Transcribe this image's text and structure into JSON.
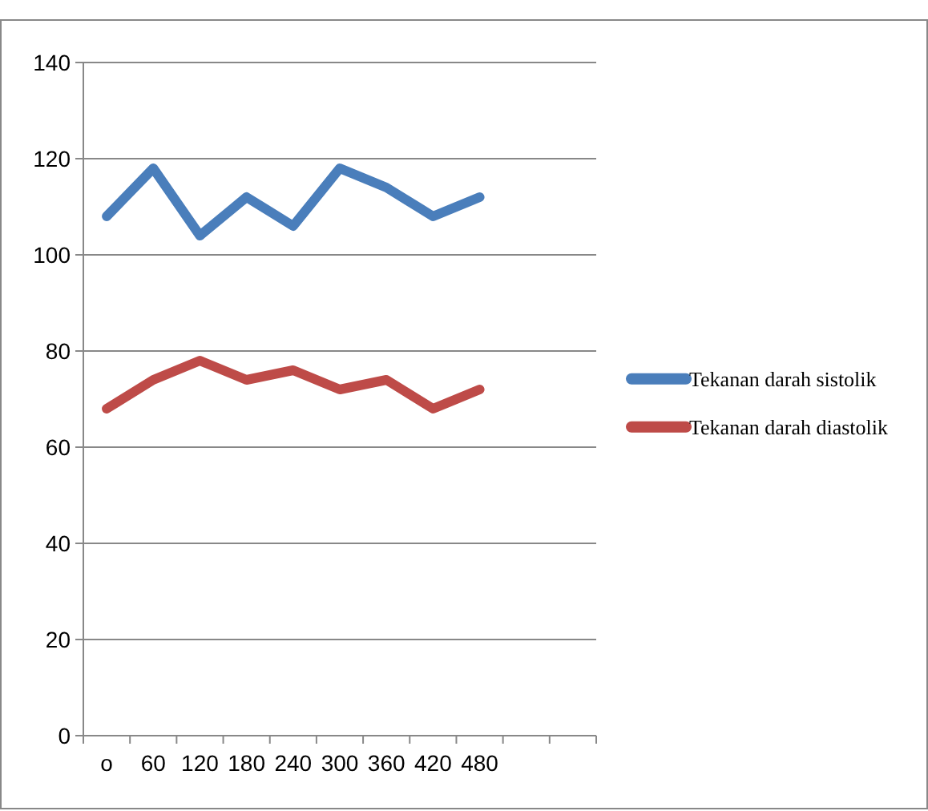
{
  "chart_data": {
    "type": "line",
    "categories": [
      "o",
      "60",
      "120",
      "180",
      "240",
      "300",
      "360",
      "420",
      "480",
      null,
      null
    ],
    "series": [
      {
        "name": "Tekanan darah sistolik",
        "color": "#4a7ebb",
        "values": [
          108,
          118,
          104,
          112,
          106,
          118,
          114,
          108,
          112,
          null,
          null
        ]
      },
      {
        "name": "Tekanan darah diastolik",
        "color": "#be4b48",
        "values": [
          68,
          74,
          78,
          74,
          76,
          72,
          74,
          68,
          72,
          null,
          null
        ]
      }
    ],
    "ylim": [
      0,
      140
    ],
    "yticks": [
      0,
      20,
      40,
      60,
      80,
      100,
      120,
      140
    ],
    "grid": "y",
    "legend": "right",
    "marker": "none",
    "line_style": "solid"
  }
}
